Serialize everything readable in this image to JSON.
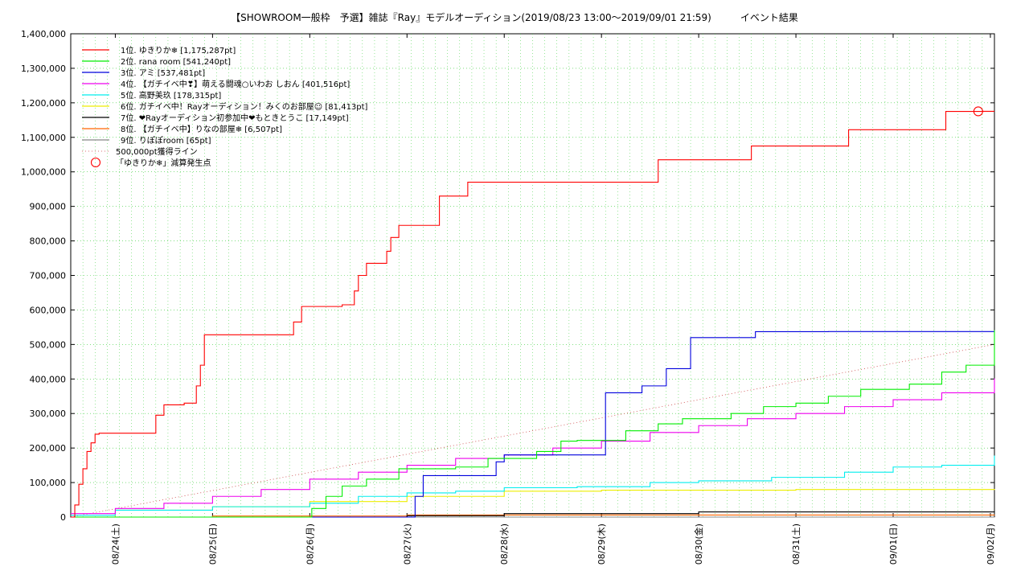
{
  "chart_data": {
    "type": "line",
    "title": "【SHOWROOM一般枠　予選】雑誌『Ray』モデルオーディション(2019/08/23 13:00～2019/09/01 21:59)　　　イベント結果",
    "xlabel": "",
    "ylabel": "",
    "x_tick_labels": [
      "08/24(土)",
      "08/25(日)",
      "08/26(月)",
      "08/27(火)",
      "08/28(水)",
      "08/29(木)",
      "08/30(金)",
      "08/31(土)",
      "09/01(日)",
      "09/02(月)"
    ],
    "ylim": [
      0,
      1400000
    ],
    "xlim": [
      "2019/08/23 13:00",
      "2019/09/02 01:00"
    ],
    "y_ticks": [
      0,
      100000,
      200000,
      300000,
      400000,
      500000,
      600000,
      700000,
      800000,
      900000,
      1000000,
      1100000,
      1200000,
      1300000,
      1400000
    ],
    "y_tick_labels": [
      "0",
      "100,000",
      "200,000",
      "300,000",
      "400,000",
      "500,000",
      "600,000",
      "700,000",
      "800,000",
      "900,000",
      "1,000,000",
      "1,100,000",
      "1,200,000",
      "1,300,000",
      "1,400,000"
    ],
    "grid": true,
    "legend_position": "top-left",
    "series": [
      {
        "name": "1位. ゆきりか❄ [1,175,287pt]",
        "color": "#ff0000",
        "x": [
          "2019/08/23 13:00",
          "2019/08/23 14:00",
          "2019/08/23 15:00",
          "2019/08/23 16:00",
          "2019/08/23 17:00",
          "2019/08/23 18:00",
          "2019/08/23 19:00",
          "2019/08/23 20:00",
          "2019/08/23 21:00",
          "2019/08/23 21:59",
          "2019/08/24 08:00",
          "2019/08/24 10:00",
          "2019/08/24 12:00",
          "2019/08/24 17:00",
          "2019/08/24 20:00",
          "2019/08/24 21:00",
          "2019/08/24 21:59",
          "2019/08/25 08:00",
          "2019/08/25 17:00",
          "2019/08/25 20:00",
          "2019/08/25 21:59",
          "2019/08/26 08:00",
          "2019/08/26 11:00",
          "2019/08/26 12:00",
          "2019/08/26 14:00",
          "2019/08/26 16:00",
          "2019/08/26 18:00",
          "2019/08/26 19:00",
          "2019/08/26 20:00",
          "2019/08/26 21:59",
          "2019/08/27 08:00",
          "2019/08/27 13:00",
          "2019/08/27 15:00",
          "2019/08/27 18:00",
          "2019/08/28 08:00",
          "2019/08/28 12:00",
          "2019/08/29 12:00",
          "2019/08/29 14:00",
          "2019/08/30 12:00",
          "2019/08/30 13:00",
          "2019/08/31 12:00",
          "2019/08/31 13:00",
          "2019/09/01 12:00",
          "2019/09/01 13:00",
          "2019/09/01 21:59",
          "2019/09/02 01:00"
        ],
        "values": [
          0,
          35000,
          95000,
          140000,
          190000,
          215000,
          240000,
          243000,
          243000,
          243000,
          243000,
          295000,
          325000,
          330000,
          380000,
          440000,
          528000,
          528000,
          528000,
          565000,
          610000,
          615000,
          655000,
          700000,
          735000,
          735000,
          735000,
          770000,
          810000,
          845000,
          930000,
          930000,
          970000,
          970000,
          970000,
          970000,
          970000,
          1035000,
          1035000,
          1075000,
          1075000,
          1122000,
          1122000,
          1175000,
          1175287,
          1175287
        ]
      },
      {
        "name": "2位. rana room [541,240pt]",
        "color": "#00ee00",
        "x": [
          "2019/08/23 13:00",
          "2019/08/26 00:00",
          "2019/08/26 00:30",
          "2019/08/26 04:00",
          "2019/08/26 08:00",
          "2019/08/26 14:00",
          "2019/08/26 22:00",
          "2019/08/27 12:00",
          "2019/08/27 20:00",
          "2019/08/28 08:00",
          "2019/08/28 14:00",
          "2019/08/28 18:00",
          "2019/08/29 06:00",
          "2019/08/29 14:00",
          "2019/08/29 20:00",
          "2019/08/30 08:00",
          "2019/08/30 16:00",
          "2019/08/31 00:00",
          "2019/08/31 08:00",
          "2019/08/31 16:00",
          "2019/09/01 04:00",
          "2019/09/01 12:00",
          "2019/09/01 18:00",
          "2019/09/02 01:00"
        ],
        "values": [
          0,
          0,
          25000,
          60000,
          90000,
          110000,
          140000,
          145000,
          170000,
          190000,
          220000,
          222000,
          250000,
          270000,
          285000,
          300000,
          320000,
          330000,
          350000,
          370000,
          385000,
          420000,
          440000,
          541240
        ]
      },
      {
        "name": "3位. アミ [537,481pt]",
        "color": "#0000dd",
        "x": [
          "2019/08/23 13:00",
          "2019/08/27 00:00",
          "2019/08/27 02:00",
          "2019/08/27 04:00",
          "2019/08/27 18:00",
          "2019/08/27 22:00",
          "2019/08/28 00:00",
          "2019/08/29 00:00",
          "2019/08/29 01:00",
          "2019/08/29 08:00",
          "2019/08/29 10:00",
          "2019/08/29 14:00",
          "2019/08/29 16:00",
          "2019/08/29 20:00",
          "2019/08/29 22:00",
          "2019/08/30 12:00",
          "2019/08/30 14:00",
          "2019/08/31 08:00",
          "2019/09/02 01:00"
        ],
        "values": [
          0,
          0,
          60000,
          120000,
          120000,
          160000,
          180000,
          180000,
          360000,
          360000,
          380000,
          380000,
          430000,
          430000,
          520000,
          520000,
          537000,
          537481,
          537481
        ]
      },
      {
        "name": "4位. 【ガチイベ中❣】萌える闘魂○いわお しおん [401,516pt]",
        "color": "#ee00ee",
        "x": [
          "2019/08/23 13:00",
          "2019/08/24 00:00",
          "2019/08/24 12:00",
          "2019/08/25 00:00",
          "2019/08/25 12:00",
          "2019/08/26 00:00",
          "2019/08/26 12:00",
          "2019/08/27 00:00",
          "2019/08/27 12:00",
          "2019/08/28 00:00",
          "2019/08/28 12:00",
          "2019/08/29 00:00",
          "2019/08/29 12:00",
          "2019/08/30 00:00",
          "2019/08/30 12:00",
          "2019/08/31 00:00",
          "2019/08/31 12:00",
          "2019/09/01 00:00",
          "2019/09/01 12:00",
          "2019/09/02 01:00"
        ],
        "values": [
          10000,
          25000,
          40000,
          60000,
          80000,
          110000,
          130000,
          150000,
          170000,
          180000,
          200000,
          220000,
          245000,
          265000,
          285000,
          300000,
          320000,
          340000,
          360000,
          401516
        ]
      },
      {
        "name": "5位. 高野美玖 [178,315pt]",
        "color": "#00eeee",
        "x": [
          "2019/08/23 13:00",
          "2019/08/24 00:00",
          "2019/08/25 00:00",
          "2019/08/26 00:00",
          "2019/08/26 12:00",
          "2019/08/27 00:00",
          "2019/08/27 12:00",
          "2019/08/28 00:00",
          "2019/08/28 18:00",
          "2019/08/29 12:00",
          "2019/08/30 00:00",
          "2019/08/30 18:00",
          "2019/08/31 12:00",
          "2019/09/01 00:00",
          "2019/09/01 12:00",
          "2019/09/02 01:00"
        ],
        "values": [
          5000,
          20000,
          30000,
          40000,
          60000,
          70000,
          75000,
          85000,
          88000,
          100000,
          105000,
          115000,
          130000,
          145000,
          150000,
          178315
        ]
      },
      {
        "name": "6位. ガチイベ中！Rayオーディション！みくのお部屋☺ [81,413pt]",
        "color": "#eeee00",
        "x": [
          "2019/08/23 13:00",
          "2019/08/24 00:00",
          "2019/08/25 00:00",
          "2019/08/26 00:00",
          "2019/08/27 00:00",
          "2019/08/28 00:00",
          "2019/08/29 00:00",
          "2019/08/31 00:00",
          "2019/09/02 01:00"
        ],
        "values": [
          0,
          20000,
          30000,
          45000,
          60000,
          75000,
          78000,
          80000,
          81413
        ]
      },
      {
        "name": "7位. ❤Rayオーディション初参加中❤もときとうこ [17,149pt]",
        "color": "#000000",
        "x": [
          "2019/08/23 13:00",
          "2019/08/27 00:00",
          "2019/08/28 00:00",
          "2019/08/30 00:00",
          "2019/09/02 01:00"
        ],
        "values": [
          0,
          4000,
          10000,
          15000,
          17149
        ]
      },
      {
        "name": "8位. 【ガチイベ中】りなの部屋❄ [6,507pt]",
        "color": "#ff6600",
        "x": [
          "2019/08/23 13:00",
          "2019/08/25 00:00",
          "2019/08/27 00:00",
          "2019/09/02 01:00"
        ],
        "values": [
          0,
          3000,
          6000,
          6507
        ]
      },
      {
        "name": "9位. りぽぽroom [65pt]",
        "color": "#888888",
        "x": [
          "2019/08/23 13:00",
          "2019/09/02 01:00"
        ],
        "values": [
          0,
          65
        ]
      }
    ],
    "reference_line": {
      "name": "500,000pt獲得ライン",
      "color": "#cc4444",
      "x": [
        "2019/08/23 13:00",
        "2019/09/02 01:00"
      ],
      "values": [
        0,
        500000
      ]
    },
    "marker": {
      "name": "「ゆきりか❄」減算発生点",
      "color": "#ff0000",
      "x": "2019/09/01 21:00",
      "value": 1175287
    }
  }
}
